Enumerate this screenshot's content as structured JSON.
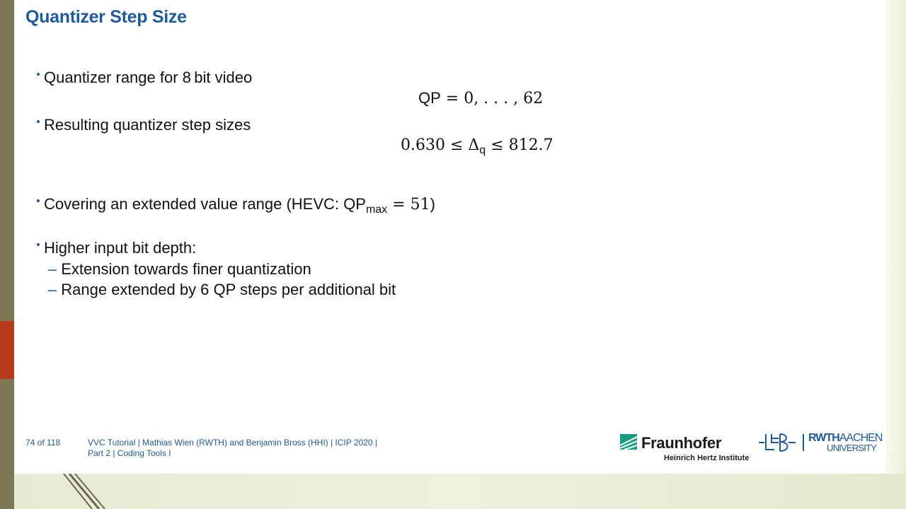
{
  "slide": {
    "title": "Quantizer Step Size",
    "bullets": [
      {
        "text": "Quantizer range for 8 bit video"
      },
      {
        "text": "Resulting quantizer step sizes"
      },
      {
        "text_pre": "Covering an extended value range (HEVC: ",
        "qp": "QP",
        "sub": "max",
        "rel": " = 51",
        "text_post": ")"
      },
      {
        "text": "Higher input bit depth:"
      }
    ],
    "subbullets": [
      {
        "text": "Extension towards finer quantization"
      },
      {
        "text": "Range extended by 6  QP steps per additional bit"
      }
    ],
    "formulas": {
      "qp_range": {
        "lhs": "QP",
        "rhs": " = 0, . . . , 62"
      },
      "step_range": {
        "lhs": "0.630 ≤ Δ",
        "sub": "q",
        "rhs": " ≤ 812.7"
      }
    }
  },
  "footer": {
    "page": "74 of 118",
    "line1": "VVC Tutorial  |  Mathias Wien (RWTH) and Benjamin Bross (HHI)  |  ICIP 2020  |",
    "line2": "Part 2  |  Coding Tools I"
  },
  "logos": {
    "fraunhofer_name": "Fraunhofer",
    "fraunhofer_sub": "Heinrich Hertz Institute",
    "rwth_top_bold": "RWTH",
    "rwth_top_light": "AACHEN",
    "rwth_bottom": "UNIVERSITY"
  },
  "colors": {
    "title": "#1f5a9a",
    "left_band": "#7d7757",
    "left_accent": "#b83a1e",
    "fraunhofer_green": "#179c7d"
  }
}
